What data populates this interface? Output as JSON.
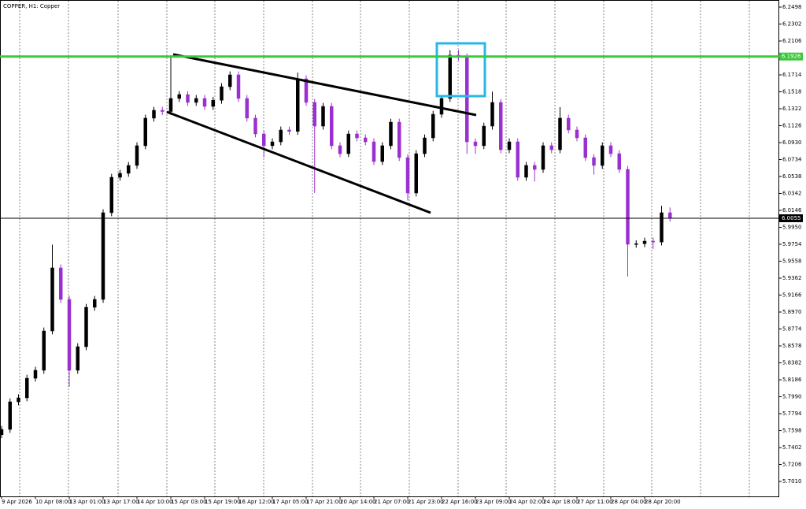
{
  "chart_data": {
    "type": "candlestick",
    "title": "COPPER, H1:  Copper",
    "categories": [
      "9 Apr 2026",
      null,
      null,
      null,
      "10 Apr 08:00",
      null,
      null,
      null,
      "13 Apr 01:00",
      null,
      null,
      null,
      "13 Apr 17:00",
      null,
      null,
      null,
      "14 Apr 10:00",
      null,
      null,
      null,
      "15 Apr 03:00",
      null,
      null,
      null,
      "15 Apr 19:00",
      null,
      null,
      null,
      "16 Apr 12:00",
      null,
      null,
      null,
      "17 Apr 05:00",
      null,
      null,
      null,
      "17 Apr 21:00",
      null,
      null,
      null,
      "20 Apr 14:00",
      null,
      null,
      null,
      "21 Apr 07:00",
      null,
      null,
      null,
      "21 Apr 23:00",
      null,
      null,
      null,
      "22 Apr 16:00",
      null,
      null,
      null,
      "23 Apr 09:00",
      null,
      null,
      null,
      "24 Apr 02:00",
      null,
      null,
      null,
      "24 Apr 18:00",
      null,
      null,
      null,
      "27 Apr 11:00",
      null,
      null,
      null,
      "28 Apr 04:00",
      null,
      null,
      null,
      "28 Apr 20:00",
      null,
      null,
      null
    ],
    "open": [
      5.755,
      5.7612,
      5.7931,
      5.7977,
      5.8204,
      5.8296,
      5.8751,
      5.9481,
      5.9116,
      5.8296,
      5.8569,
      5.9025,
      5.9116,
      6.0119,
      6.0529,
      6.0575,
      6.0666,
      6.0894,
      6.1213,
      6.1304,
      6.129,
      6.1441,
      6.1486,
      6.1395,
      6.1441,
      6.1349,
      6.142,
      6.1577,
      6.1714,
      6.1441,
      6.1213,
      6.103,
      6.0894,
      6.0939,
      6.1076,
      6.106,
      6.1668,
      6.1395,
      6.1121,
      6.1349,
      6.0894,
      6.0802,
      6.103,
      6.0985,
      6.0939,
      6.0711,
      6.0894,
      6.1167,
      6.0757,
      6.0347,
      6.0802,
      6.0985,
      6.1258,
      6.1441,
      6.1942,
      6.192,
      6.0939,
      6.0894,
      6.1121,
      6.1395,
      6.0848,
      6.0939,
      6.0529,
      6.0666,
      6.062,
      6.0894,
      6.0848,
      6.1213,
      6.1076,
      6.0985,
      6.0757,
      6.0666,
      6.0894,
      6.0802,
      6.062,
      5.9754,
      5.976,
      5.979,
      5.978,
      6.0119
    ],
    "high": [
      5.7652,
      5.7971,
      5.8017,
      5.8244,
      5.8336,
      5.8791,
      5.975,
      5.9521,
      5.9156,
      5.8609,
      5.9065,
      5.9156,
      6.0159,
      6.0569,
      6.0615,
      6.0706,
      6.0934,
      6.1253,
      6.1344,
      6.1344,
      6.194,
      6.1526,
      6.1526,
      6.1481,
      6.1481,
      6.146,
      6.1617,
      6.1754,
      6.1754,
      6.1481,
      6.1253,
      6.107,
      6.0979,
      6.1116,
      6.1116,
      6.174,
      6.1708,
      6.1435,
      6.1389,
      6.1389,
      6.0934,
      6.107,
      6.107,
      6.1025,
      6.0979,
      6.0934,
      6.1207,
      6.1207,
      6.0797,
      6.0842,
      6.1025,
      6.1298,
      6.1481,
      6.2,
      6.2,
      6.196,
      6.0979,
      6.1161,
      6.152,
      6.1435,
      6.0979,
      6.0979,
      6.0706,
      6.0706,
      6.0934,
      6.0934,
      6.134,
      6.1253,
      6.1116,
      6.1025,
      6.0797,
      6.0934,
      6.0934,
      6.0842,
      6.066,
      5.98,
      5.983,
      5.983,
      6.02,
      6.018
    ],
    "low": [
      5.751,
      5.7572,
      5.7891,
      5.7937,
      5.8164,
      5.8256,
      5.8711,
      5.9076,
      5.8106,
      5.8256,
      5.8529,
      5.8985,
      5.9076,
      6.0079,
      6.0489,
      6.0535,
      6.0626,
      6.0854,
      6.1173,
      6.125,
      6.125,
      6.1401,
      6.1355,
      6.1355,
      6.1309,
      6.1309,
      6.138,
      6.1537,
      6.1401,
      6.1173,
      6.099,
      6.076,
      6.0854,
      6.0899,
      6.102,
      6.102,
      6.1355,
      6.0347,
      6.1081,
      6.0854,
      6.0762,
      6.0762,
      6.0945,
      6.0899,
      6.0671,
      6.0671,
      6.0854,
      6.0717,
      6.026,
      6.0307,
      6.0762,
      6.0945,
      6.1218,
      6.1401,
      6.188,
      6.08,
      6.08,
      6.0854,
      6.1081,
      6.0808,
      6.0808,
      6.0489,
      6.0489,
      6.048,
      6.058,
      6.0808,
      6.0808,
      6.1036,
      6.0945,
      6.0717,
      6.056,
      6.0626,
      6.0762,
      6.058,
      5.938,
      5.9714,
      5.972,
      5.97,
      5.974,
      6.0015
    ],
    "close": [
      5.7612,
      5.7931,
      5.7977,
      5.8204,
      5.8296,
      5.8751,
      5.9481,
      5.9116,
      5.8296,
      5.8569,
      5.9025,
      5.9116,
      6.0119,
      6.0529,
      6.0575,
      6.0666,
      6.0894,
      6.1213,
      6.1304,
      6.129,
      6.1441,
      6.1486,
      6.1395,
      6.1441,
      6.1349,
      6.142,
      6.1577,
      6.1714,
      6.1441,
      6.1213,
      6.103,
      6.0894,
      6.0939,
      6.1076,
      6.106,
      6.1668,
      6.1395,
      6.1121,
      6.1349,
      6.0894,
      6.0802,
      6.103,
      6.0985,
      6.0939,
      6.0711,
      6.0894,
      6.1167,
      6.0757,
      6.0347,
      6.0802,
      6.0985,
      6.1258,
      6.1441,
      6.1942,
      6.192,
      6.0939,
      6.0894,
      6.1121,
      6.1395,
      6.0848,
      6.0939,
      6.0529,
      6.0666,
      6.062,
      6.0894,
      6.0848,
      6.1213,
      6.1076,
      6.0985,
      6.0757,
      6.0666,
      6.0894,
      6.0802,
      6.062,
      5.9754,
      5.976,
      5.979,
      5.978,
      6.0119,
      6.0055
    ],
    "up_color": "#000000",
    "down_color": "#9b30d0",
    "ylim": [
      5.6837,
      6.258
    ],
    "yticks": [
      6.2498,
      6.2302,
      6.2106,
      6.1714,
      6.1518,
      6.1322,
      6.1126,
      {
        "value": 6.093,
        "label": "6.0930"
      },
      6.0734,
      6.0538,
      6.0342,
      6.0146,
      {
        "value": 5.995,
        "label": "5.9950"
      },
      5.9754,
      5.9558,
      5.9362,
      5.9166,
      {
        "value": 5.897,
        "label": "5.8970"
      },
      5.8774,
      5.8578,
      5.8382,
      5.8186,
      {
        "value": 5.799,
        "label": "5.7990"
      },
      5.7794,
      5.7598,
      5.7402,
      5.7206,
      {
        "value": 5.701,
        "label": "5.7010"
      }
    ],
    "levels": [
      6.1926,
      6.0055
    ],
    "level_colors": [
      "#3cc83c",
      "#000000"
    ]
  }
}
